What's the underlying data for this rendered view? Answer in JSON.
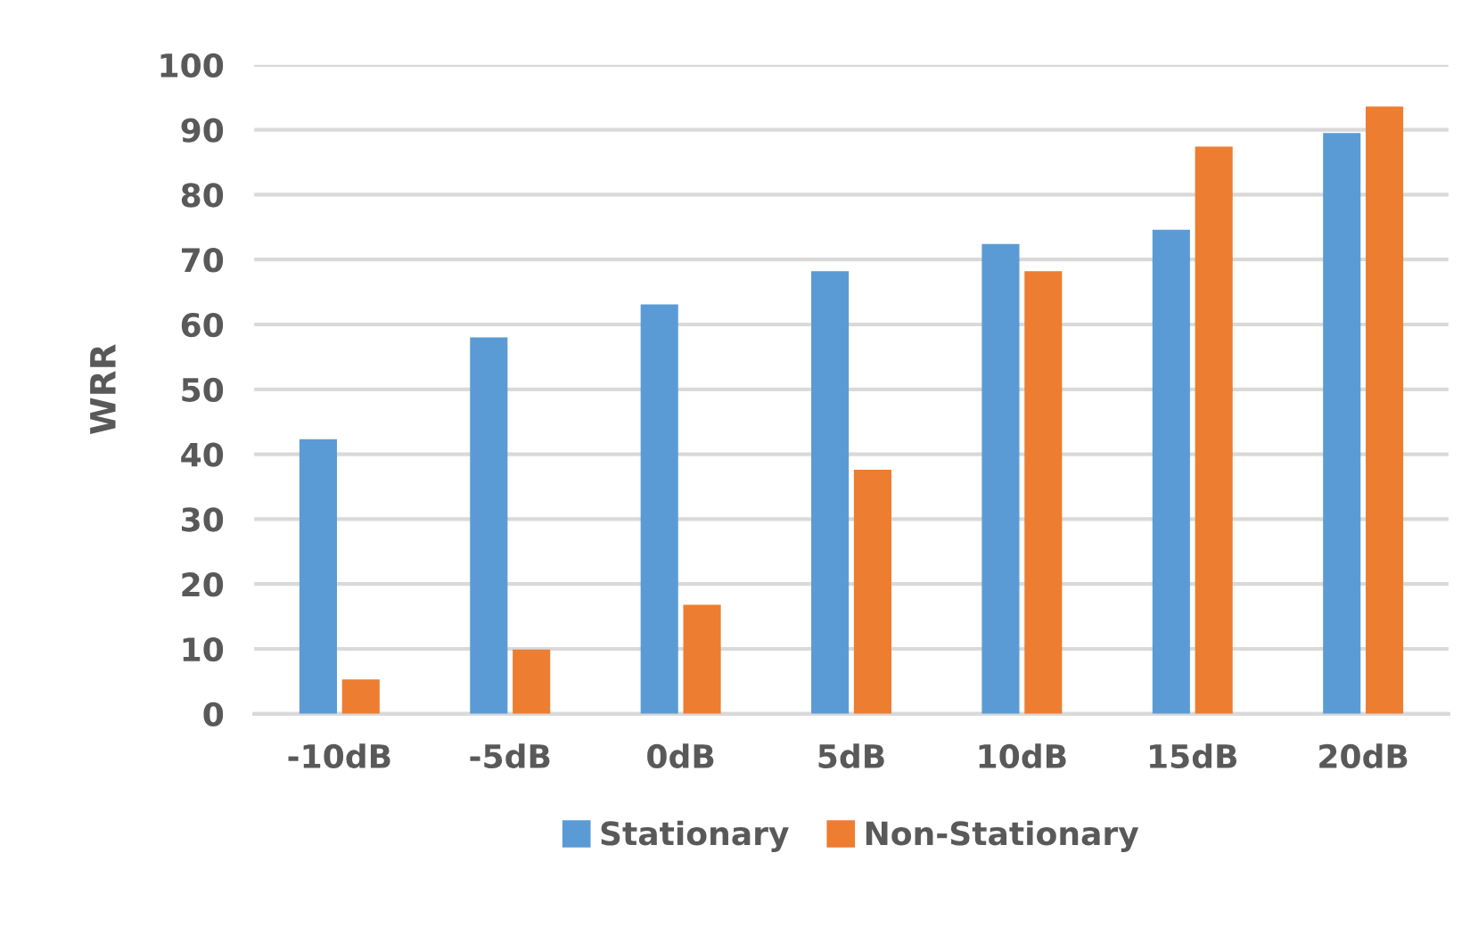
{
  "chart_data": {
    "type": "bar",
    "ylabel": "WRR",
    "categories": [
      "-10dB",
      "-5dB",
      "0dB",
      "5dB",
      "10dB",
      "15dB",
      "20dB"
    ],
    "series": [
      {
        "name": "Stationary",
        "color": "#5b9bd5",
        "values": [
          42.3,
          58.0,
          63.1,
          68.2,
          72.4,
          74.6,
          89.5
        ]
      },
      {
        "name": "Non-Stationary",
        "color": "#ed7d31",
        "values": [
          5.3,
          9.9,
          16.8,
          37.6,
          68.2,
          87.4,
          93.6
        ]
      }
    ],
    "ylim": [
      0,
      100
    ],
    "yticks": [
      0,
      10,
      20,
      30,
      40,
      50,
      60,
      70,
      80,
      90,
      100
    ],
    "grid": "y",
    "legend": "bottom"
  }
}
